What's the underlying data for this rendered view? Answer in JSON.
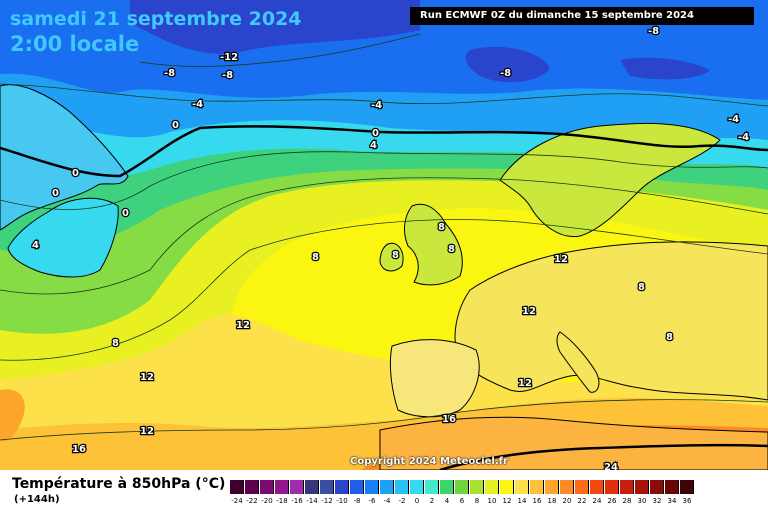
{
  "header": {
    "date": "samedi 21 septembre 2024",
    "time": "2:00 locale",
    "run": "Run ECMWF 0Z du dimanche 15 septembre 2024"
  },
  "copyright": "Copyright 2024 Meteociel.fr",
  "legend": {
    "title": "Température à 850hPa (°C)",
    "lead": "(+144h)",
    "values": [
      "-24",
      "-22",
      "-20",
      "-18",
      "-16",
      "-14",
      "-12",
      "-10",
      "-8",
      "-6",
      "-4",
      "-2",
      "0",
      "2",
      "4",
      "6",
      "8",
      "10",
      "12",
      "14",
      "16",
      "18",
      "20",
      "22",
      "24",
      "26",
      "28",
      "30",
      "32",
      "34",
      "36"
    ],
    "colors": [
      "#3d0030",
      "#5e0050",
      "#7a0a70",
      "#93168f",
      "#a12cab",
      "#393680",
      "#3b4fa0",
      "#2a45cc",
      "#1f5fe8",
      "#1a7ef5",
      "#1ea0f5",
      "#27c1f5",
      "#36d9ee",
      "#45e8c8",
      "#3bd66a",
      "#6fd63e",
      "#a8e22e",
      "#e4f01f",
      "#fbf512",
      "#fde14a",
      "#fdc238",
      "#fda52a",
      "#fd8a22",
      "#fb6b18",
      "#f24a10",
      "#e2300c",
      "#c91f0a",
      "#aa1408",
      "#8a0b08",
      "#6a0506",
      "#3d0306"
    ]
  },
  "map_labels": [
    {
      "text": "-12"
    },
    {
      "text": "-8"
    },
    {
      "text": "-8"
    },
    {
      "text": "-8"
    },
    {
      "text": "-8"
    },
    {
      "text": "-4"
    },
    {
      "text": "-4"
    },
    {
      "text": "-4"
    },
    {
      "text": "-4"
    },
    {
      "text": "0"
    },
    {
      "text": "0"
    },
    {
      "text": "0"
    },
    {
      "text": "0"
    },
    {
      "text": "0"
    },
    {
      "text": "4"
    },
    {
      "text": "4"
    },
    {
      "text": "8"
    },
    {
      "text": "8"
    },
    {
      "text": "8"
    },
    {
      "text": "8"
    },
    {
      "text": "8"
    },
    {
      "text": "8"
    },
    {
      "text": "8"
    },
    {
      "text": "12"
    },
    {
      "text": "12"
    },
    {
      "text": "12"
    },
    {
      "text": "12"
    },
    {
      "text": "12"
    },
    {
      "text": "12"
    },
    {
      "text": "16"
    },
    {
      "text": "16"
    },
    {
      "text": "24"
    }
  ]
}
